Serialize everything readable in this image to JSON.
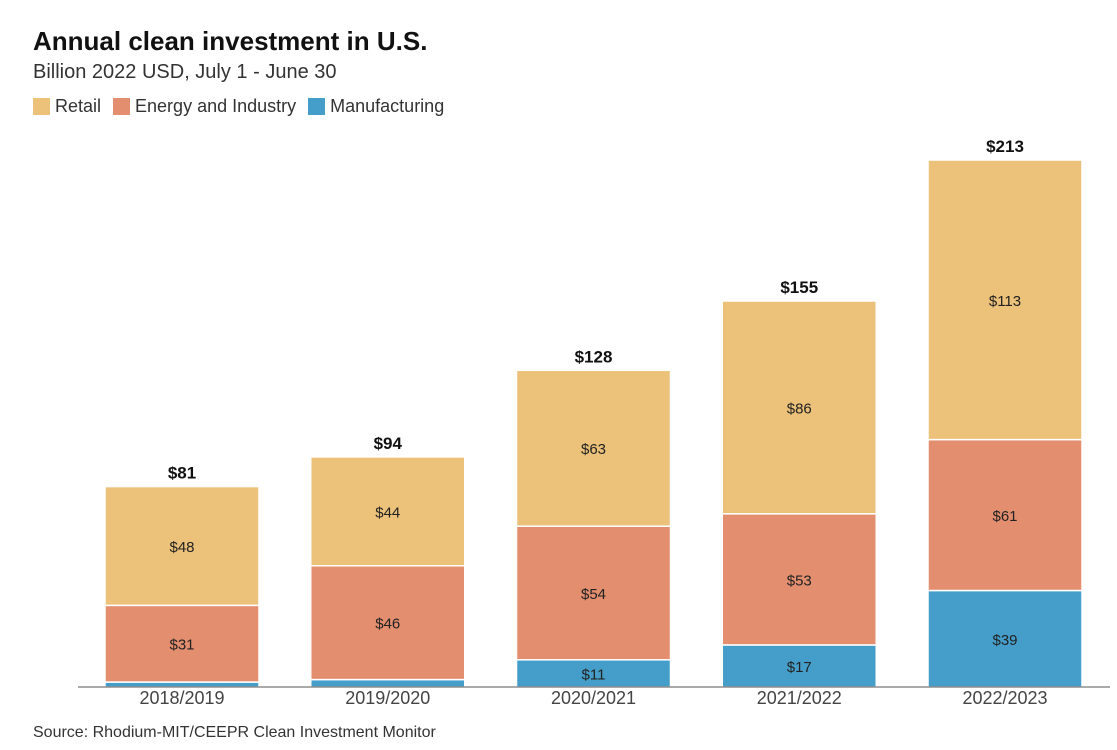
{
  "header": {
    "title": "Annual clean investment in U.S.",
    "subtitle": "Billion 2022 USD, July 1 - June 30"
  },
  "legend": [
    {
      "label": "Retail",
      "color": "#ecc179"
    },
    {
      "label": "Energy and Industry",
      "color": "#e38e6f"
    },
    {
      "label": "Manufacturing",
      "color": "#449ec9"
    }
  ],
  "footer": {
    "source": "Source: Rhodium-MIT/CEEPR Clean Investment Monitor"
  },
  "chart_data": {
    "type": "bar",
    "stacked": true,
    "title": "Annual clean investment in U.S.",
    "subtitle": "Billion 2022 USD, July 1 - June 30",
    "xlabel": "",
    "ylabel": "",
    "ylim": [
      0,
      213
    ],
    "grid": false,
    "legend_position": "top-left",
    "categories": [
      "2018/2019",
      "2019/2020",
      "2020/2021",
      "2021/2022",
      "2022/2023"
    ],
    "series": [
      {
        "name": "Manufacturing",
        "color": "#449ec9",
        "values": [
          2,
          3,
          11,
          17,
          39
        ],
        "labels": [
          "",
          "",
          "$11",
          "$17",
          "$39"
        ]
      },
      {
        "name": "Energy and Industry",
        "color": "#e38e6f",
        "values": [
          31,
          46,
          54,
          53,
          61
        ],
        "labels": [
          "$31",
          "$46",
          "$54",
          "$53",
          "$61"
        ]
      },
      {
        "name": "Retail",
        "color": "#ecc179",
        "values": [
          48,
          44,
          63,
          86,
          113
        ],
        "labels": [
          "$48",
          "$44",
          "$63",
          "$86",
          "$113"
        ]
      }
    ],
    "totals": [
      81,
      94,
      128,
      155,
      213
    ],
    "total_labels": [
      "$81",
      "$94",
      "$128",
      "$155",
      "$213"
    ]
  }
}
